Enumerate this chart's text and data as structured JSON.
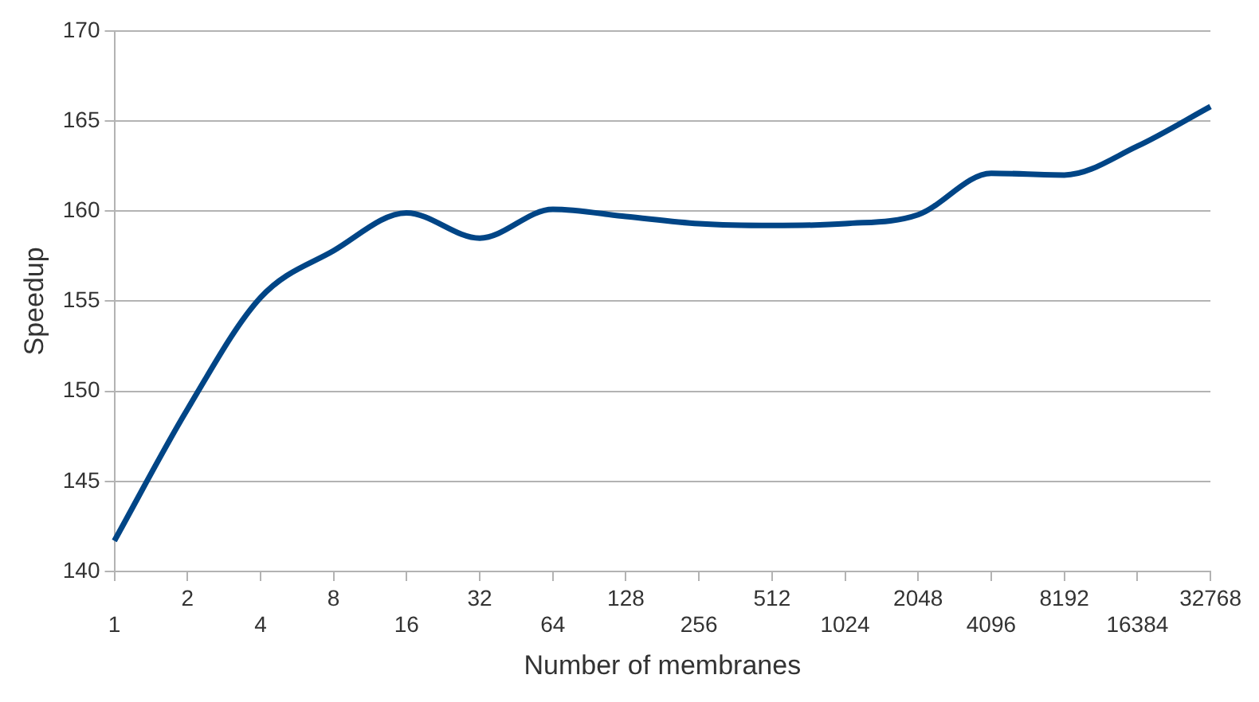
{
  "chart_data": {
    "type": "line",
    "xlabel": "Number of membranes",
    "ylabel": "Speedup",
    "categories": [
      "1",
      "2",
      "4",
      "8",
      "16",
      "32",
      "64",
      "128",
      "256",
      "512",
      "1024",
      "2048",
      "4096",
      "8192",
      "16384",
      "32768"
    ],
    "series": [
      {
        "color": "#004586",
        "values": [
          141.7,
          149.0,
          155.2,
          157.8,
          159.9,
          158.5,
          160.1,
          159.7,
          159.3,
          159.2,
          159.3,
          159.8,
          162.1,
          162.0,
          163.6,
          165.8
        ]
      }
    ],
    "ylim": [
      140,
      170
    ],
    "yticks": [
      140,
      145,
      150,
      155,
      160,
      165,
      170
    ],
    "grid": "y",
    "legend": false,
    "marker": "none",
    "line_style": "solid"
  }
}
